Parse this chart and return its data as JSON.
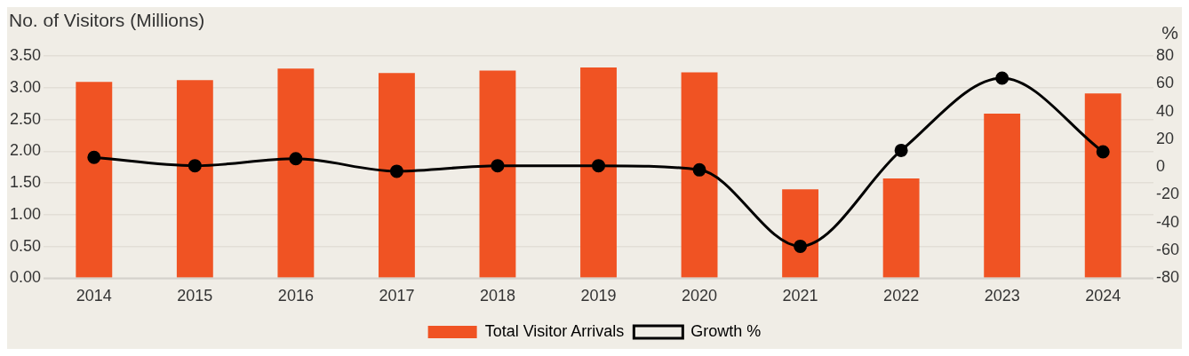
{
  "chart_data": {
    "type": "bar",
    "ylabel": "No. of Visitors (Millions)",
    "y2label": "%",
    "categories": [
      "2014",
      "2015",
      "2016",
      "2017",
      "2018",
      "2019",
      "2020",
      "2021",
      "2022",
      "2023",
      "2024"
    ],
    "series": [
      {
        "name": "Total Visitor Arrivals",
        "color": "#f05323",
        "values": [
          3.09,
          3.12,
          3.3,
          3.23,
          3.27,
          3.32,
          3.24,
          1.4,
          1.57,
          2.59,
          2.91
        ]
      },
      {
        "name": "Growth %",
        "type": "line",
        "axis": "y2",
        "color": "#000000",
        "marker": "circle",
        "values": [
          7,
          1,
          6,
          -3,
          1,
          1,
          -2,
          -57,
          12,
          64,
          11
        ]
      }
    ],
    "ylim": [
      0,
      3.5
    ],
    "yticks": [
      {
        "value": 0,
        "label": "0.00"
      },
      {
        "value": 0.5,
        "label": "0.50"
      },
      {
        "value": 1,
        "label": "1.00"
      },
      {
        "value": 1.5,
        "label": "1.50"
      },
      {
        "value": 2,
        "label": "2.00"
      },
      {
        "value": 2.5,
        "label": "2.50"
      },
      {
        "value": 3,
        "label": "3.00"
      },
      {
        "value": 3.5,
        "label": "3.50"
      }
    ],
    "y2lim": [
      -80,
      80
    ],
    "y2ticks": [
      -80,
      -60,
      -40,
      -20,
      0,
      20,
      40,
      60,
      80
    ],
    "grid": "y",
    "legend": "bottom"
  }
}
